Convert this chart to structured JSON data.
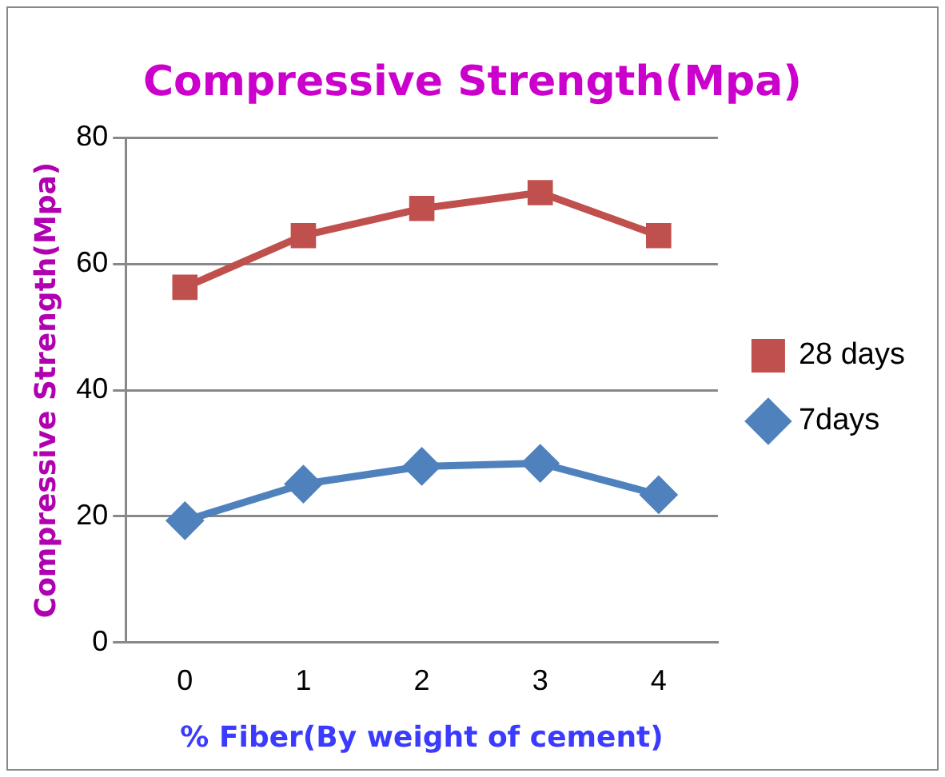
{
  "chart_data": {
    "type": "line",
    "title": "Compressive Strength(Mpa)",
    "xlabel": "% Fiber(By weight of cement)",
    "ylabel": "Compressive Strength(Mpa)",
    "categories": [
      "0",
      "1",
      "2",
      "3",
      "4"
    ],
    "series": [
      {
        "name": "28 days",
        "color": "#c0504d",
        "marker": "square",
        "values": [
          56.3,
          64.5,
          68.8,
          71.3,
          64.5
        ]
      },
      {
        "name": "7days",
        "color": "#4f81bd",
        "marker": "diamond",
        "values": [
          19.3,
          25.1,
          27.9,
          28.4,
          23.4
        ]
      }
    ],
    "ylim": [
      0,
      80
    ],
    "yticks": [
      0,
      20,
      40,
      60,
      80
    ],
    "grid": "y",
    "legend": "right",
    "line_style": "solid"
  }
}
